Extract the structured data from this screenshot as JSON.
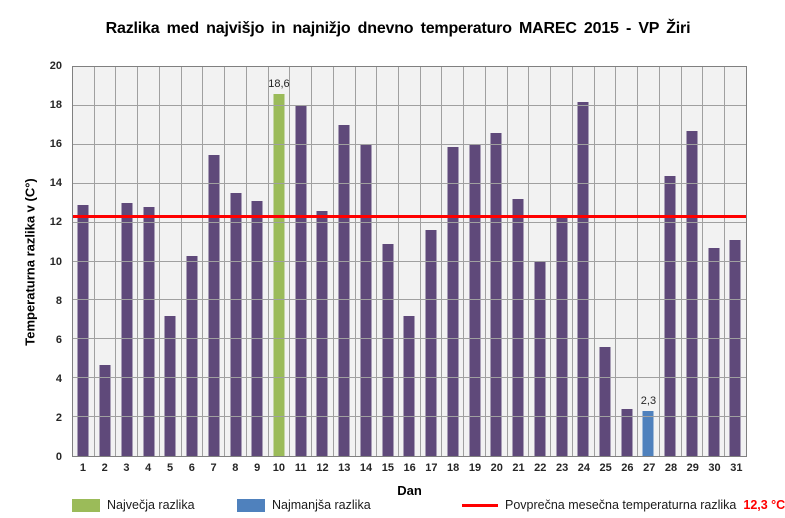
{
  "chart_data": {
    "type": "bar",
    "title": "Razlika med najvišjo in najnižjo dnevno temperaturo MAREC 2015 - VP Žiri",
    "xlabel": "Dan",
    "ylabel": "Temperaturna razlika v (C°)",
    "ylim": [
      0,
      20
    ],
    "yticks": [
      0,
      2,
      4,
      6,
      8,
      10,
      12,
      14,
      16,
      18,
      20
    ],
    "grid": "on",
    "plot_bg": "#f2f2f2",
    "gridline_color": "#a0a0a0",
    "categories": [
      "1",
      "2",
      "3",
      "4",
      "5",
      "6",
      "7",
      "8",
      "9",
      "10",
      "11",
      "12",
      "13",
      "14",
      "15",
      "16",
      "17",
      "18",
      "19",
      "20",
      "21",
      "22",
      "23",
      "24",
      "25",
      "26",
      "27",
      "28",
      "29",
      "30",
      "31"
    ],
    "values": [
      12.9,
      4.7,
      13.0,
      12.8,
      7.2,
      10.3,
      15.5,
      13.5,
      13.1,
      18.6,
      18.0,
      12.6,
      17.0,
      16.0,
      10.9,
      7.2,
      11.6,
      15.9,
      16.0,
      16.6,
      13.2,
      10.0,
      12.4,
      18.2,
      5.6,
      2.4,
      2.3,
      14.4,
      16.7,
      10.7,
      11.1
    ],
    "bar_color": "#5f497a",
    "highlight_max": {
      "day": "10",
      "value": 18.6,
      "value_label": "18,6",
      "color": "#9bbb59"
    },
    "highlight_min": {
      "day": "27",
      "value": 2.3,
      "value_label": "2,3",
      "color": "#4f81bd"
    },
    "average_line": {
      "value": 12.3,
      "color": "#ff0000"
    },
    "legend": {
      "position": "bottom",
      "max_label": "Največja razlika",
      "min_label": "Najmanjša razlika",
      "avg_label": "Povprečna mesečna temperaturna razlika",
      "avg_value_label": "12,3 °C",
      "avg_value_color": "#ff0000"
    }
  }
}
